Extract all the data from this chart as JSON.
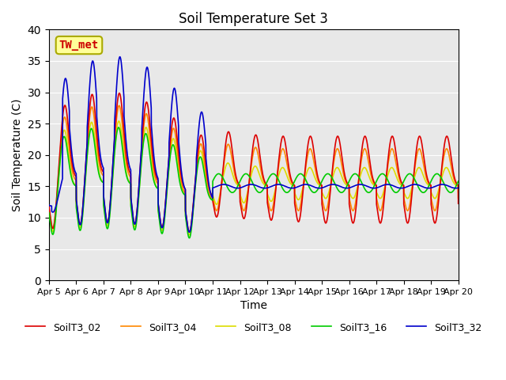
{
  "title": "Soil Temperature Set 3",
  "xlabel": "Time",
  "ylabel": "Soil Temperature (C)",
  "ylim": [
    0,
    40
  ],
  "background_color": "#e8e8e8",
  "figure_color": "#ffffff",
  "grid_color": "#ffffff",
  "annotation_text": "TW_met",
  "annotation_color": "#cc0000",
  "annotation_bg": "#ffff99",
  "annotation_border": "#aaaa00",
  "colors": {
    "SoilT3_02": "#dd0000",
    "SoilT3_04": "#ff8800",
    "SoilT3_08": "#dddd00",
    "SoilT3_16": "#00cc00",
    "SoilT3_32": "#0000cc"
  },
  "tick_labels": [
    "Apr 5",
    "Apr 6",
    "Apr 7",
    "Apr 8",
    "Apr 9",
    "Apr 10",
    "Apr 11",
    "Apr 12",
    "Apr 13",
    "Apr 14",
    "Apr 15",
    "Apr 16",
    "Apr 17",
    "Apr 18",
    "Apr 19",
    "Apr 20"
  ],
  "tick_positions": [
    0,
    1,
    2,
    3,
    4,
    5,
    6,
    7,
    8,
    9,
    10,
    11,
    12,
    13,
    14,
    15
  ]
}
